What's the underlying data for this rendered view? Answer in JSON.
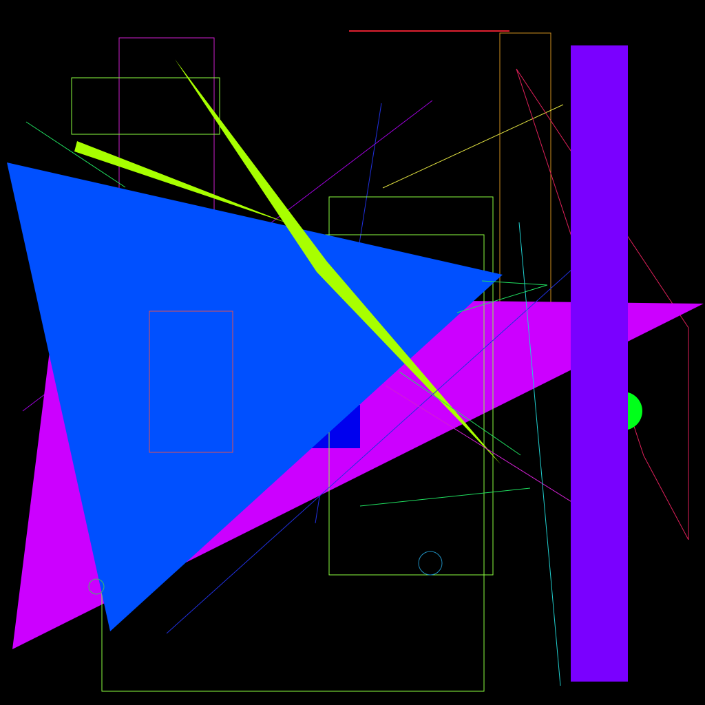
{
  "background": "#000000",
  "colors": {
    "magenta_fill": "#CC00FF",
    "blue_fill": "#0050FF",
    "deep_blue_fill": "#0000EE",
    "lime_fill": "#A8FF00",
    "violet_bar_fill": "#7A00FF",
    "green_dot_fill": "#00FF1A",
    "lime_outline": "#8CFF40",
    "magenta_outline": "#D020D0",
    "orange_outline": "#D09020",
    "salmon_outline": "#E05050",
    "red_line": "#E02030",
    "crimson_line": "#E0205A",
    "purple_line": "#A000E0",
    "blue_line": "#2030E0",
    "cyan_line": "#20D0D0",
    "green_line": "#20E060",
    "yellow_line": "#E0E040",
    "teal_circle": "#2090C0",
    "green_circle": "#40C060"
  }
}
